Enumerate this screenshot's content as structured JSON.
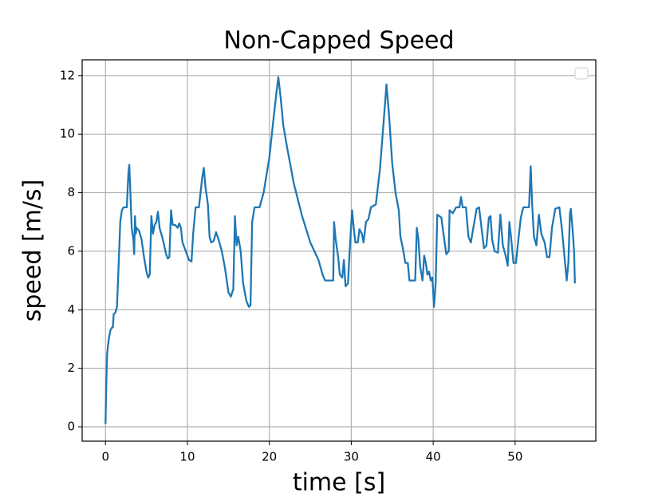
{
  "chart_data": {
    "type": "line",
    "title": "Non-Capped Speed",
    "xlabel": "time [s]",
    "ylabel": "speed [m/s]",
    "color": "#1f77b4",
    "grid": true,
    "legend": "upper right",
    "xlim": [
      -2.85,
      59.85
    ],
    "ylim": [
      -0.49,
      12.54
    ],
    "xticks": [
      0,
      10,
      20,
      30,
      40,
      50
    ],
    "yticks": [
      0,
      2,
      4,
      6,
      8,
      10,
      12
    ],
    "x": [
      0,
      0.1,
      0.2,
      0.4,
      0.6,
      0.8,
      0.9,
      1.0,
      1.2,
      1.4,
      1.6,
      1.8,
      2.0,
      2.2,
      2.6,
      2.8,
      2.9,
      3.0,
      3.1,
      3.2,
      3.4,
      3.5,
      3.6,
      3.7,
      3.8,
      4.1,
      4.4,
      4.7,
      5.0,
      5.2,
      5.4,
      5.6,
      5.8,
      6.0,
      6.2,
      6.4,
      6.6,
      7.0,
      7.4,
      7.6,
      7.8,
      8.0,
      8.2,
      8.5,
      8.8,
      9.0,
      9.2,
      9.4,
      9.8,
      10.2,
      10.5,
      10.7,
      11.0,
      11.4,
      11.8,
      12.0,
      12.2,
      12.5,
      12.7,
      12.9,
      13.2,
      13.5,
      13.8,
      14.2,
      14.6,
      15.0,
      15.3,
      15.6,
      15.8,
      16.0,
      16.2,
      16.5,
      16.8,
      17.2,
      17.5,
      17.7,
      17.9,
      18.2,
      18.8,
      19.3,
      20.0,
      20.5,
      20.9,
      21.1,
      21.4,
      21.7,
      22.2,
      23.0,
      24.0,
      25.0,
      26.0,
      26.5,
      26.8,
      27.3,
      27.8,
      27.9,
      28.1,
      28.4,
      28.6,
      28.9,
      29.1,
      29.3,
      29.6,
      29.8,
      30.1,
      30.3,
      30.5,
      30.8,
      31.0,
      31.3,
      31.5,
      31.8,
      32.1,
      32.4,
      33.0,
      33.5,
      34.0,
      34.3,
      34.6,
      35.0,
      35.4,
      35.8,
      36.0,
      36.3,
      36.6,
      36.9,
      37.1,
      37.6,
      37.8,
      38.0,
      38.2,
      38.4,
      38.7,
      38.9,
      39.1,
      39.3,
      39.5,
      39.7,
      39.9,
      40.1,
      40.3,
      40.5,
      41.0,
      41.3,
      41.6,
      41.9,
      42.0,
      42.4,
      42.8,
      43.2,
      43.4,
      43.6,
      44.0,
      44.3,
      44.6,
      44.9,
      45.3,
      45.6,
      45.9,
      46.2,
      46.5,
      46.8,
      47.0,
      47.2,
      47.5,
      47.9,
      48.2,
      48.5,
      48.8,
      49.1,
      49.3,
      49.5,
      49.8,
      50.1,
      50.4,
      50.7,
      51.0,
      51.7,
      51.9,
      52.1,
      52.3,
      52.6,
      52.9,
      53.2,
      53.6,
      53.9,
      54.2,
      54.5,
      54.9,
      55.4,
      55.7,
      56.0,
      56.3,
      56.5,
      56.7,
      56.8,
      57.0,
      57.2,
      57.3
    ],
    "values": [
      0.1,
      1.5,
      2.5,
      3.0,
      3.3,
      3.4,
      3.4,
      3.85,
      3.9,
      4.1,
      5.5,
      7.0,
      7.4,
      7.5,
      7.5,
      8.7,
      8.95,
      8.3,
      7.5,
      6.8,
      6.4,
      5.9,
      7.2,
      6.6,
      6.8,
      6.7,
      6.4,
      5.8,
      5.3,
      5.1,
      5.2,
      7.2,
      6.6,
      6.9,
      7.0,
      7.35,
      6.8,
      6.4,
      5.9,
      5.75,
      5.8,
      7.4,
      6.9,
      6.9,
      6.8,
      6.95,
      6.8,
      6.3,
      6.0,
      5.7,
      5.65,
      6.6,
      7.5,
      7.5,
      8.5,
      8.85,
      8.2,
      7.6,
      6.5,
      6.3,
      6.35,
      6.65,
      6.4,
      6.0,
      5.4,
      4.6,
      4.45,
      4.7,
      7.2,
      6.2,
      6.5,
      6.0,
      4.9,
      4.3,
      4.1,
      4.15,
      7.0,
      7.5,
      7.5,
      8.0,
      9.2,
      10.5,
      11.5,
      11.95,
      11.2,
      10.3,
      9.5,
      8.3,
      7.2,
      6.3,
      5.7,
      5.2,
      5.0,
      5.0,
      5.0,
      7.0,
      6.4,
      5.8,
      5.2,
      5.1,
      5.7,
      4.8,
      4.9,
      6.0,
      7.4,
      6.8,
      6.3,
      6.3,
      6.75,
      6.6,
      6.3,
      7.0,
      7.1,
      7.5,
      7.6,
      8.8,
      10.6,
      11.7,
      10.7,
      9.0,
      8.0,
      7.4,
      6.5,
      6.1,
      5.6,
      5.6,
      5.0,
      5.0,
      5.0,
      6.8,
      6.4,
      5.5,
      5.0,
      5.85,
      5.6,
      5.2,
      5.3,
      5.0,
      5.1,
      4.1,
      4.9,
      7.25,
      7.15,
      6.5,
      5.9,
      6.0,
      7.4,
      7.3,
      7.5,
      7.5,
      7.85,
      7.5,
      7.5,
      6.5,
      6.3,
      6.8,
      7.45,
      7.5,
      6.8,
      6.1,
      6.2,
      7.15,
      7.2,
      6.4,
      6.0,
      5.95,
      7.25,
      6.2,
      5.9,
      5.5,
      7.0,
      6.5,
      5.6,
      5.6,
      6.4,
      7.15,
      7.5,
      7.5,
      8.9,
      7.5,
      6.5,
      6.2,
      7.25,
      6.6,
      6.3,
      5.8,
      5.8,
      6.8,
      7.45,
      7.5,
      6.8,
      5.9,
      5.0,
      5.6,
      7.3,
      7.45,
      6.8,
      6.0,
      4.9
    ]
  }
}
